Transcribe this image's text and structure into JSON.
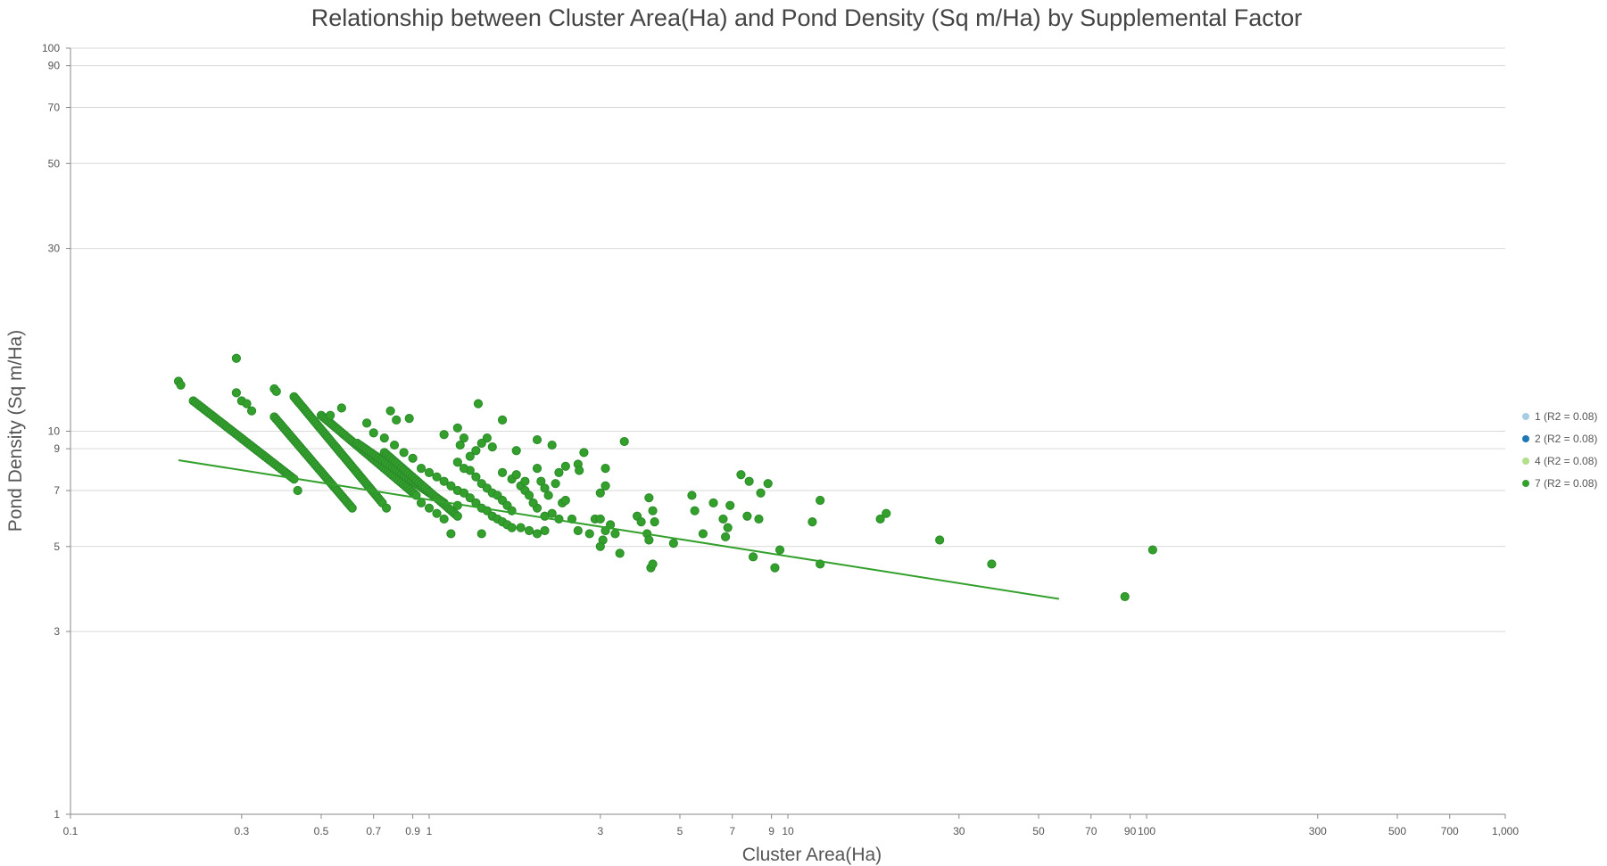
{
  "chart_data": {
    "type": "scatter",
    "title": "Relationship between Cluster Area(Ha) and Pond Density (Sq m/Ha) by Supplemental Factor",
    "xlabel": "Cluster Area(Ha)",
    "ylabel": "Pond Density (Sq m/Ha)",
    "x_scale": "log",
    "y_scale": "log",
    "xlim": [
      0.1,
      1000
    ],
    "ylim": [
      1,
      100
    ],
    "x_ticks": [
      0.1,
      0.3,
      0.5,
      0.7,
      0.9,
      1,
      3,
      5,
      7,
      9,
      10,
      30,
      50,
      70,
      90,
      100,
      300,
      500,
      700,
      1000
    ],
    "x_tick_labels": [
      "0.1",
      "0.3",
      "0.5",
      "0.7",
      "0.9",
      "1",
      "3",
      "5",
      "7",
      "9",
      "10",
      "30",
      "50",
      "70",
      "90",
      "100",
      "300",
      "500",
      "700",
      "1,000"
    ],
    "y_ticks": [
      1,
      3,
      5,
      7,
      9,
      10,
      30,
      50,
      70,
      90,
      100
    ],
    "y_tick_labels": [
      "1",
      "3",
      "5",
      "7",
      "9",
      "10",
      "30",
      "50",
      "70",
      "90",
      "100"
    ],
    "grid": true,
    "legend_position": "right",
    "legend": [
      {
        "label": "1 (R2 = 0.08)",
        "color": "#a6cee3"
      },
      {
        "label": "2 (R2 = 0.08)",
        "color": "#1f78b4"
      },
      {
        "label": "4 (R2 = 0.08)",
        "color": "#b2df8a"
      },
      {
        "label": "7 (R2 = 0.08)",
        "color": "#33a02c"
      }
    ],
    "series": [
      {
        "name": "7 (R2 = 0.08)",
        "color": "#33a02c",
        "points": [
          [
            0.2,
            13.5
          ],
          [
            0.203,
            13.2
          ],
          [
            0.29,
            15.5
          ],
          [
            0.29,
            12.6
          ],
          [
            0.3,
            12.0
          ],
          [
            0.31,
            11.8
          ],
          [
            0.32,
            11.3
          ],
          [
            0.37,
            12.9
          ],
          [
            0.375,
            12.7
          ],
          [
            0.43,
            7.0
          ],
          [
            0.53,
            11.0
          ],
          [
            0.57,
            11.5
          ],
          [
            0.78,
            11.3
          ],
          [
            0.81,
            10.7
          ],
          [
            0.88,
            10.8
          ],
          [
            1.1,
            9.8
          ],
          [
            1.2,
            10.2
          ],
          [
            1.22,
            9.2
          ],
          [
            1.25,
            9.6
          ],
          [
            1.37,
            11.8
          ],
          [
            1.45,
            9.6
          ],
          [
            1.5,
            9.1
          ],
          [
            1.6,
            10.7
          ],
          [
            1.75,
            8.9
          ],
          [
            2.0,
            9.5
          ],
          [
            2.2,
            9.2
          ],
          [
            2.4,
            8.1
          ],
          [
            2.6,
            8.2
          ],
          [
            2.62,
            7.9
          ],
          [
            2.7,
            8.8
          ],
          [
            3.1,
            8.0
          ],
          [
            3.5,
            9.4
          ],
          [
            3.8,
            6.0
          ],
          [
            3.9,
            5.8
          ],
          [
            2.0,
            6.3
          ],
          [
            2.1,
            6.0
          ],
          [
            2.2,
            6.1
          ],
          [
            2.3,
            5.9
          ],
          [
            2.35,
            6.5
          ],
          [
            2.4,
            6.6
          ],
          [
            2.5,
            5.9
          ],
          [
            2.6,
            5.5
          ],
          [
            2.8,
            5.4
          ],
          [
            2.9,
            5.9
          ],
          [
            3.0,
            5.9
          ],
          [
            3.05,
            5.2
          ],
          [
            3.1,
            5.5
          ],
          [
            3.2,
            5.7
          ],
          [
            3.3,
            5.4
          ],
          [
            3.4,
            4.8
          ],
          [
            3.0,
            6.9
          ],
          [
            3.1,
            7.2
          ],
          [
            3.0,
            5.0
          ],
          [
            4.1,
            6.7
          ],
          [
            4.2,
            6.2
          ],
          [
            4.25,
            5.8
          ],
          [
            4.05,
            5.4
          ],
          [
            4.1,
            5.2
          ],
          [
            4.15,
            4.4
          ],
          [
            4.2,
            4.5
          ],
          [
            4.8,
            5.1
          ],
          [
            5.4,
            6.8
          ],
          [
            5.5,
            6.2
          ],
          [
            5.8,
            5.4
          ],
          [
            6.2,
            6.5
          ],
          [
            6.6,
            5.9
          ],
          [
            6.8,
            5.6
          ],
          [
            6.7,
            5.3
          ],
          [
            6.9,
            6.4
          ],
          [
            7.4,
            7.7
          ],
          [
            7.8,
            7.4
          ],
          [
            8.0,
            4.7
          ],
          [
            7.7,
            6.0
          ],
          [
            8.3,
            5.9
          ],
          [
            8.4,
            6.9
          ],
          [
            8.8,
            7.3
          ],
          [
            9.2,
            4.4
          ],
          [
            9.5,
            4.9
          ],
          [
            11.7,
            5.8
          ],
          [
            12.3,
            6.6
          ],
          [
            12.3,
            4.5
          ],
          [
            18.1,
            5.9
          ],
          [
            18.8,
            6.1
          ],
          [
            26.5,
            5.2
          ],
          [
            37.0,
            4.5
          ],
          [
            87.0,
            3.7
          ],
          [
            104.0,
            4.9
          ],
          [
            0.76,
            6.3
          ],
          [
            0.67,
            10.5
          ],
          [
            0.95,
            8.0
          ],
          [
            1.0,
            7.8
          ],
          [
            1.05,
            7.6
          ],
          [
            1.1,
            7.4
          ],
          [
            1.15,
            7.2
          ],
          [
            1.2,
            7.0
          ],
          [
            1.25,
            6.9
          ],
          [
            1.3,
            6.7
          ],
          [
            1.35,
            6.5
          ],
          [
            1.4,
            6.3
          ],
          [
            1.45,
            6.2
          ],
          [
            1.5,
            6.0
          ],
          [
            1.55,
            5.9
          ],
          [
            1.6,
            5.8
          ],
          [
            1.65,
            5.7
          ],
          [
            1.7,
            5.6
          ],
          [
            1.3,
            7.9
          ],
          [
            1.35,
            7.6
          ],
          [
            1.4,
            7.3
          ],
          [
            1.45,
            7.1
          ],
          [
            1.5,
            6.9
          ],
          [
            1.55,
            6.8
          ],
          [
            1.6,
            6.6
          ],
          [
            1.65,
            6.4
          ],
          [
            1.7,
            6.2
          ],
          [
            1.8,
            7.2
          ],
          [
            1.85,
            7.0
          ],
          [
            1.9,
            6.8
          ],
          [
            1.95,
            6.5
          ],
          [
            2.05,
            7.4
          ],
          [
            2.1,
            7.1
          ],
          [
            2.15,
            6.8
          ],
          [
            2.25,
            7.3
          ],
          [
            1.8,
            5.6
          ],
          [
            1.9,
            5.5
          ],
          [
            2.0,
            5.4
          ],
          [
            2.1,
            5.5
          ],
          [
            1.4,
            5.4
          ],
          [
            1.15,
            5.4
          ],
          [
            1.2,
            8.3
          ],
          [
            1.25,
            8.0
          ],
          [
            1.3,
            8.6
          ],
          [
            1.35,
            8.9
          ],
          [
            1.4,
            9.3
          ],
          [
            1.6,
            7.8
          ],
          [
            1.7,
            7.5
          ],
          [
            1.75,
            7.7
          ],
          [
            1.85,
            7.4
          ],
          [
            2.0,
            8.0
          ],
          [
            2.3,
            7.8
          ],
          [
            0.9,
            8.5
          ],
          [
            0.85,
            8.8
          ],
          [
            0.8,
            9.2
          ],
          [
            0.75,
            9.6
          ],
          [
            0.7,
            9.9
          ],
          [
            0.95,
            6.5
          ],
          [
            1.0,
            6.3
          ],
          [
            1.05,
            6.1
          ],
          [
            1.1,
            5.9
          ],
          [
            1.2,
            6.4
          ]
        ],
        "dense_bands": [
          {
            "x_from": 0.22,
            "y_from": 12.0,
            "x_to": 0.42,
            "y_to": 7.5
          },
          {
            "x_from": 0.37,
            "y_from": 10.9,
            "x_to": 0.61,
            "y_to": 6.3
          },
          {
            "x_from": 0.42,
            "y_from": 12.3,
            "x_to": 0.74,
            "y_to": 6.5
          },
          {
            "x_from": 0.5,
            "y_from": 11.0,
            "x_to": 0.92,
            "y_to": 6.8
          },
          {
            "x_from": 0.63,
            "y_from": 9.3,
            "x_to": 1.1,
            "y_to": 6.5
          },
          {
            "x_from": 0.75,
            "y_from": 8.8,
            "x_to": 1.2,
            "y_to": 6.0
          }
        ]
      }
    ],
    "trendline": {
      "series": "7 (R2 = 0.08)",
      "from": [
        0.2,
        8.4
      ],
      "to": [
        57.0,
        3.65
      ],
      "color": "#33a02c"
    }
  }
}
